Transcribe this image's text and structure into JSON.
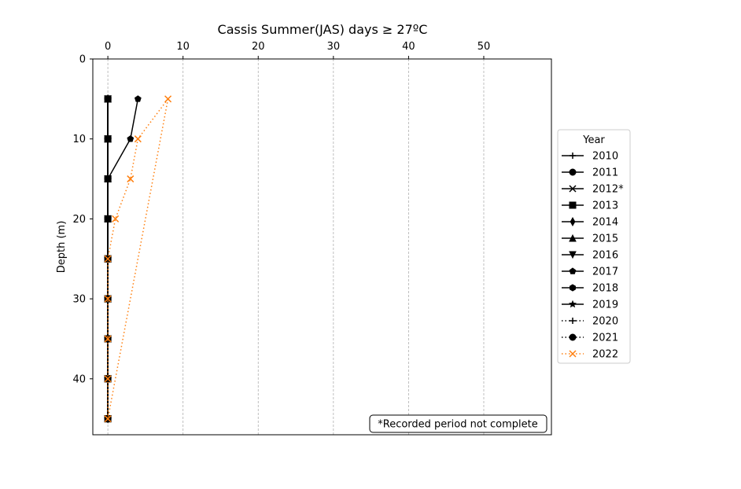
{
  "chart_data": {
    "type": "line",
    "title": "Cassis Summer(JAS) days ≥ 27ºC",
    "xlabel": "",
    "ylabel": "Depth (m)",
    "xlim": [
      -2,
      59
    ],
    "ylim": [
      47,
      0
    ],
    "x_axis_position": "top",
    "y_inverted": true,
    "grid": "vertical dashed",
    "x_ticks": [
      0,
      10,
      20,
      30,
      40,
      50
    ],
    "y_ticks": [
      0,
      10,
      20,
      30,
      40
    ],
    "depths": [
      5,
      10,
      15,
      20,
      25,
      30,
      35,
      40,
      45
    ],
    "legend": {
      "title": "Year",
      "placement": "outside-right"
    },
    "series": [
      {
        "name": "2010",
        "color": "#000000",
        "marker": "plus",
        "linestyle": "solid",
        "values": [
          0,
          0,
          0,
          0,
          0,
          0,
          0,
          0,
          0
        ]
      },
      {
        "name": "2011",
        "color": "#000000",
        "marker": "circle",
        "linestyle": "solid",
        "values": [
          0,
          0,
          0,
          0,
          0,
          0,
          0,
          0,
          0
        ]
      },
      {
        "name": "2012*",
        "color": "#000000",
        "marker": "x",
        "linestyle": "solid",
        "values": [
          0,
          0,
          0,
          0,
          0,
          0,
          0,
          0,
          0
        ]
      },
      {
        "name": "2013",
        "color": "#000000",
        "marker": "square",
        "linestyle": "solid",
        "values": [
          0,
          0,
          0,
          0,
          0,
          0,
          0,
          0,
          0
        ]
      },
      {
        "name": "2014",
        "color": "#000000",
        "marker": "diamond",
        "linestyle": "solid",
        "values": [
          0,
          0,
          0,
          0,
          0,
          0,
          0,
          0,
          0
        ]
      },
      {
        "name": "2015",
        "color": "#000000",
        "marker": "triangle-up",
        "linestyle": "solid",
        "values": [
          0,
          0,
          0,
          0,
          0,
          0,
          0,
          0,
          0
        ]
      },
      {
        "name": "2016",
        "color": "#000000",
        "marker": "triangle-down",
        "linestyle": "solid",
        "values": [
          0,
          0,
          0,
          0,
          0,
          0,
          0,
          0,
          0
        ]
      },
      {
        "name": "2017",
        "color": "#000000",
        "marker": "pentagon",
        "linestyle": "solid",
        "values": [
          4,
          3,
          0,
          0,
          0,
          0,
          0,
          0,
          0
        ]
      },
      {
        "name": "2018",
        "color": "#000000",
        "marker": "hexagon",
        "linestyle": "solid",
        "values": [
          0,
          0,
          0,
          0,
          0,
          0,
          0,
          0,
          0
        ]
      },
      {
        "name": "2019",
        "color": "#000000",
        "marker": "star",
        "linestyle": "solid",
        "values": [
          0,
          0,
          0,
          0,
          0,
          0,
          0,
          0,
          0
        ]
      },
      {
        "name": "2020",
        "color": "#000000",
        "marker": "plus",
        "linestyle": "dotted",
        "values": [
          0,
          0,
          0,
          0,
          0,
          0,
          0,
          0,
          0
        ]
      },
      {
        "name": "2021",
        "color": "#000000",
        "marker": "circle",
        "linestyle": "dotted",
        "values": [
          0,
          0,
          0,
          0,
          0,
          0,
          0,
          0,
          0
        ]
      },
      {
        "name": "2022",
        "color": "#ff7f0e",
        "marker": "x",
        "linestyle": "dotted",
        "values": [
          8,
          4,
          3,
          1,
          0,
          0,
          0,
          0,
          0
        ],
        "extra_segment": [
          [
            8,
            5
          ],
          [
            0,
            45
          ]
        ]
      }
    ],
    "annotation": "*Recorded period not complete"
  }
}
